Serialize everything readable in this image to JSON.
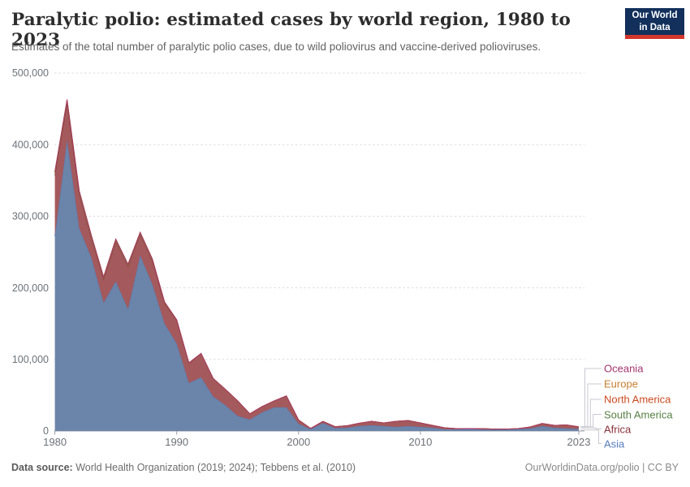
{
  "header": {
    "title": "Paralytic polio: estimated cases by world region, 1980 to 2023",
    "subtitle": "Estimates of the total number of paralytic polio cases, due to wild poliovirus and vaccine-derived polioviruses.",
    "logo": {
      "line1": "Our World",
      "line2": "in Data",
      "bg": "#12305b",
      "stripe": "#d2372c"
    }
  },
  "chart_data": {
    "type": "area",
    "stacked": true,
    "title": "Paralytic polio: estimated cases by world region, 1980 to 2023",
    "xlabel": "",
    "ylabel": "",
    "ylim": [
      0,
      500000
    ],
    "grid": "horizontal-dashed",
    "legend_position": "right",
    "x": [
      1980,
      1981,
      1982,
      1983,
      1984,
      1985,
      1986,
      1987,
      1988,
      1989,
      1990,
      1991,
      1992,
      1993,
      1994,
      1995,
      1996,
      1997,
      1998,
      1999,
      2000,
      2001,
      2002,
      2003,
      2004,
      2005,
      2006,
      2007,
      2008,
      2009,
      2010,
      2011,
      2012,
      2013,
      2014,
      2015,
      2016,
      2017,
      2018,
      2019,
      2020,
      2021,
      2022,
      2023
    ],
    "xticks": [
      1980,
      1990,
      2000,
      2010,
      2023
    ],
    "yticks": [
      0,
      100000,
      200000,
      300000,
      400000,
      500000
    ],
    "ytick_labels": [
      "0",
      "100,000",
      "200,000",
      "300,000",
      "400,000",
      "500,000"
    ],
    "series": [
      {
        "name": "asia",
        "label": "Asia",
        "color": "#577bbe",
        "fill": "#6b84a9",
        "values": [
          272000,
          406000,
          283000,
          242000,
          179000,
          209000,
          170000,
          245000,
          205000,
          150000,
          122000,
          67000,
          75000,
          48000,
          36000,
          21000,
          16000,
          26000,
          33000,
          33000,
          10000,
          2500,
          11000,
          4000,
          4500,
          7000,
          7900,
          6800,
          5700,
          6800,
          5700,
          4500,
          2300,
          2300,
          2500,
          2000,
          1700,
          1800,
          2500,
          3400,
          6800,
          4500,
          3400,
          2800
        ]
      },
      {
        "name": "africa",
        "label": "Africa",
        "color": "#883039",
        "fill": "#a45a5c",
        "values": [
          85000,
          52000,
          48000,
          27000,
          33000,
          56000,
          60000,
          30000,
          33000,
          28500,
          32000,
          27500,
          33000,
          25000,
          22000,
          21000,
          8000,
          8000,
          9000,
          16000,
          5500,
          1100,
          2400,
          2000,
          2900,
          3900,
          5600,
          4400,
          7800,
          7800,
          5500,
          3300,
          2100,
          1000,
          900,
          1300,
          1000,
          900,
          800,
          2200,
          3700,
          3300,
          5000,
          3100
        ]
      },
      {
        "name": "south_america",
        "label": "South America",
        "color": "#578145",
        "fill": "#7e9457",
        "values": [
          4000,
          3800,
          3500,
          3000,
          2600,
          2400,
          2400,
          2000,
          1900,
          1500,
          1000,
          500,
          200,
          100,
          50,
          30,
          20,
          10,
          10,
          10,
          5,
          5,
          5,
          5,
          5,
          5,
          5,
          5,
          5,
          5,
          5,
          5,
          5,
          5,
          5,
          5,
          5,
          5,
          5,
          5,
          5,
          5,
          5,
          5
        ]
      },
      {
        "name": "north_america",
        "label": "North America",
        "color": "#cb4a21",
        "fill": "#d96f4e",
        "values": [
          400,
          350,
          300,
          250,
          200,
          180,
          150,
          120,
          100,
          80,
          60,
          40,
          20,
          10,
          5,
          5,
          5,
          5,
          5,
          5,
          2,
          2,
          2,
          2,
          2,
          2,
          2,
          2,
          2,
          2,
          2,
          2,
          2,
          2,
          2,
          2,
          2,
          2,
          2,
          2,
          2,
          2,
          2,
          2
        ]
      },
      {
        "name": "europe",
        "label": "Europe",
        "color": "#c97e2f",
        "fill": "#d79a5c",
        "values": [
          900,
          800,
          700,
          600,
          500,
          450,
          400,
          350,
          300,
          250,
          220,
          200,
          180,
          150,
          120,
          100,
          80,
          60,
          40,
          20,
          10,
          10,
          10,
          10,
          10,
          10,
          10,
          10,
          10,
          10,
          5,
          5,
          5,
          5,
          5,
          5,
          5,
          5,
          5,
          5,
          5,
          5,
          5,
          5
        ]
      },
      {
        "name": "oceania",
        "label": "Oceania",
        "color": "#a2346d",
        "fill": "#b8608f",
        "values": [
          150,
          140,
          130,
          120,
          110,
          100,
          90,
          80,
          70,
          60,
          50,
          40,
          30,
          20,
          10,
          10,
          10,
          10,
          10,
          10,
          5,
          5,
          5,
          5,
          5,
          5,
          5,
          5,
          5,
          5,
          2,
          2,
          2,
          2,
          2,
          2,
          2,
          2,
          2,
          2,
          2,
          2,
          2,
          2
        ]
      }
    ],
    "legend": [
      {
        "label": "Oceania",
        "color": "#a2346d",
        "series": "oceania"
      },
      {
        "label": "Europe",
        "color": "#c97e2f",
        "series": "europe"
      },
      {
        "label": "North America",
        "color": "#cb4a21",
        "series": "north_america"
      },
      {
        "label": "South America",
        "color": "#578145",
        "series": "south_america"
      },
      {
        "label": "Africa",
        "color": "#883039",
        "series": "africa"
      },
      {
        "label": "Asia",
        "color": "#577bbe",
        "series": "asia"
      }
    ]
  },
  "footer": {
    "label": "Data source:",
    "source": " World Health Organization (2019; 2024); Tebbens et al. (2010)",
    "link": "OurWorldinData.org/polio",
    "separator": " | ",
    "license": "CC BY"
  }
}
